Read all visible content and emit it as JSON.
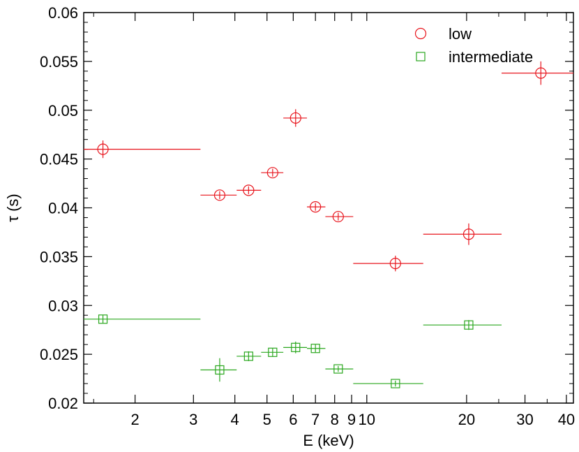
{
  "chart_data": {
    "type": "scatter",
    "xlabel": "E (keV)",
    "ylabel": "τ (s)",
    "xscale": "log",
    "xlim": [
      1.4,
      42
    ],
    "ylim": [
      0.02,
      0.06
    ],
    "grid": false,
    "legend_position": "top-right",
    "x_ticks": [
      2,
      3,
      4,
      5,
      6,
      7,
      8,
      9,
      10,
      20,
      30,
      40
    ],
    "x_tick_labels": [
      "2",
      "3",
      "4",
      "5",
      "6",
      "7",
      "8",
      "9",
      "10",
      "20",
      "30",
      "40"
    ],
    "y_ticks": [
      0.02,
      0.025,
      0.03,
      0.035,
      0.04,
      0.045,
      0.05,
      0.055,
      0.06
    ],
    "y_tick_labels": [
      "0.02",
      "0.025",
      "0.03",
      "0.035",
      "0.04",
      "0.045",
      "0.05",
      "0.055",
      "0.06"
    ],
    "series": [
      {
        "name": "low",
        "marker": "circle",
        "color": "#e8141c",
        "points": [
          {
            "x": 1.6,
            "xlo": 1.0,
            "xhi": 3.15,
            "y": 0.046,
            "yerr": 0.0009
          },
          {
            "x": 3.6,
            "xlo": 3.15,
            "xhi": 4.05,
            "y": 0.0413,
            "yerr": 0.0004
          },
          {
            "x": 4.4,
            "xlo": 4.05,
            "xhi": 4.8,
            "y": 0.0418,
            "yerr": 0.0004
          },
          {
            "x": 5.2,
            "xlo": 4.8,
            "xhi": 5.6,
            "y": 0.0436,
            "yerr": 0.0004
          },
          {
            "x": 6.1,
            "xlo": 5.6,
            "xhi": 6.6,
            "y": 0.0492,
            "yerr": 0.0009
          },
          {
            "x": 7.0,
            "xlo": 6.6,
            "xhi": 7.5,
            "y": 0.0401,
            "yerr": 0.0004
          },
          {
            "x": 8.2,
            "xlo": 7.5,
            "xhi": 9.1,
            "y": 0.0391,
            "yerr": 0.0004
          },
          {
            "x": 12.2,
            "xlo": 9.1,
            "xhi": 14.8,
            "y": 0.0343,
            "yerr": 0.0008
          },
          {
            "x": 20.3,
            "xlo": 14.8,
            "xhi": 25.5,
            "y": 0.0373,
            "yerr": 0.0011
          },
          {
            "x": 33.5,
            "xlo": 25.5,
            "xhi": 45.0,
            "y": 0.0538,
            "yerr": 0.0012
          }
        ]
      },
      {
        "name": "intermediate",
        "marker": "square",
        "color": "#2aa71e",
        "points": [
          {
            "x": 1.6,
            "xlo": 1.0,
            "xhi": 3.15,
            "y": 0.0286,
            "yerr": 0.0004
          },
          {
            "x": 3.6,
            "xlo": 3.15,
            "xhi": 4.05,
            "y": 0.0234,
            "yerr": 0.0012
          },
          {
            "x": 4.4,
            "xlo": 4.05,
            "xhi": 4.8,
            "y": 0.0248,
            "yerr": 0.0005
          },
          {
            "x": 5.2,
            "xlo": 4.8,
            "xhi": 5.6,
            "y": 0.0252,
            "yerr": 0.0004
          },
          {
            "x": 6.1,
            "xlo": 5.6,
            "xhi": 6.6,
            "y": 0.0257,
            "yerr": 0.0006
          },
          {
            "x": 7.0,
            "xlo": 6.6,
            "xhi": 7.5,
            "y": 0.0256,
            "yerr": 0.0004
          },
          {
            "x": 8.2,
            "xlo": 7.5,
            "xhi": 9.1,
            "y": 0.0235,
            "yerr": 0.0003
          },
          {
            "x": 12.2,
            "xlo": 9.1,
            "xhi": 14.8,
            "y": 0.022,
            "yerr": 0.0003
          },
          {
            "x": 20.3,
            "xlo": 14.8,
            "xhi": 25.5,
            "y": 0.028,
            "yerr": 0.0005
          }
        ]
      }
    ]
  }
}
